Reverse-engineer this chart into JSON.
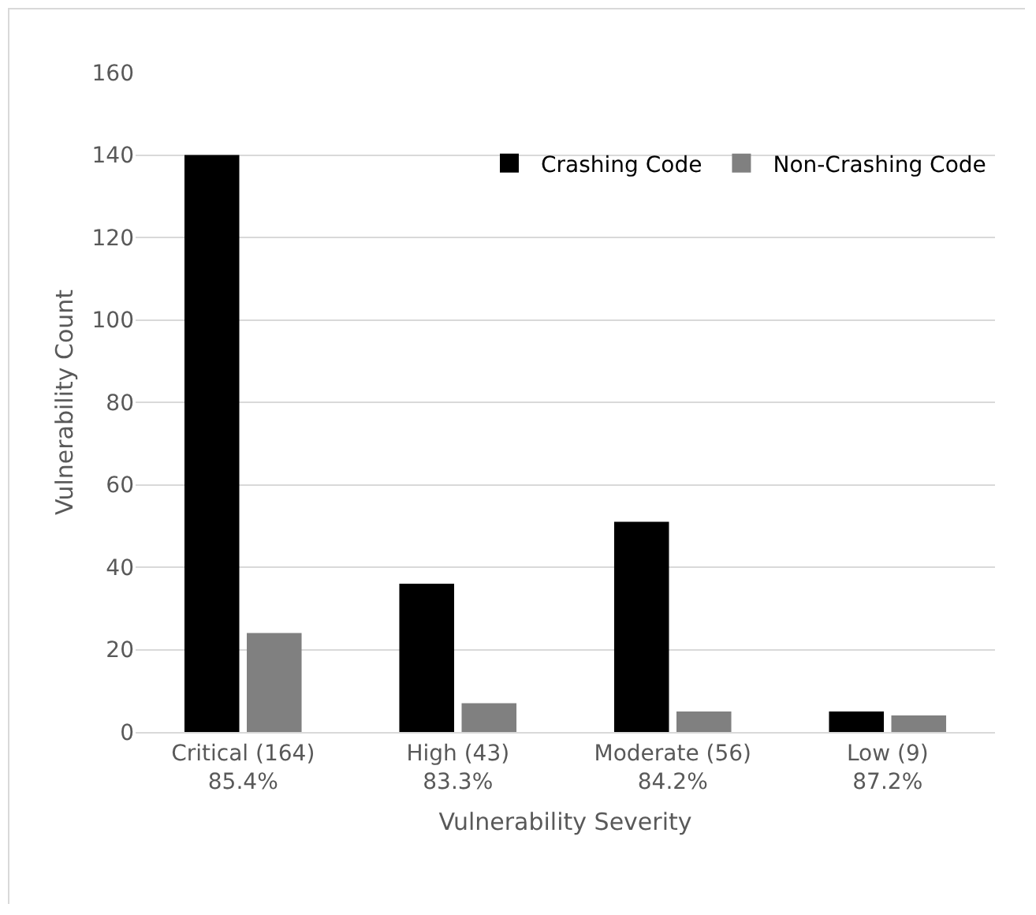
{
  "chart_data": {
    "type": "bar",
    "xlabel": "Vulnerability Severity",
    "ylabel": "Vulnerability Count",
    "categories": [
      "Critical (164)\n85.4%",
      "High (43)\n83.3%",
      "Moderate (56)\n84.2%",
      "Low (9)\n87.2%"
    ],
    "series": [
      {
        "name": "Crashing Code",
        "color": "#000000",
        "values": [
          140,
          36,
          51,
          5
        ]
      },
      {
        "name": "Non-Crashing Code",
        "color": "#808080",
        "values": [
          24,
          7,
          5,
          4
        ]
      }
    ],
    "ylim": [
      0,
      160
    ],
    "yticks": [
      0,
      20,
      40,
      60,
      80,
      100,
      120,
      140,
      160
    ],
    "grid": "y",
    "legend": "top right"
  }
}
